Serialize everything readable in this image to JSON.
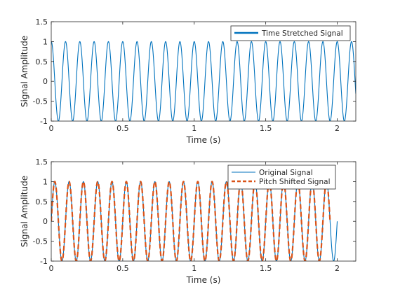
{
  "chart_data": [
    {
      "type": "line",
      "xlabel": "Time (s)",
      "ylabel": "Signal Amplitude",
      "xlim": [
        0,
        2.13
      ],
      "ylim": [
        -1,
        1.5
      ],
      "xticks": [
        0,
        0.5,
        1,
        1.5,
        2
      ],
      "xtick_labels": [
        "0",
        "0.5",
        "1",
        "1.5",
        "2"
      ],
      "yticks": [
        -1,
        -0.5,
        0,
        0.5,
        1,
        1.5
      ],
      "ytick_labels": [
        "-1",
        "-0.5",
        "0",
        "0.5",
        "1",
        "1.5"
      ],
      "grid": false,
      "legend_position": "top-right",
      "series": [
        {
          "name": "Time Stretched Signal",
          "function": "cos(2*pi*f*t)",
          "frequency_hz": 10,
          "amplitude": 1,
          "t_start": 0,
          "t_end": 2.13,
          "color": "#0072bd",
          "style": "solid"
        }
      ]
    },
    {
      "type": "line",
      "xlabel": "Time (s)",
      "ylabel": "Signal Amplitude",
      "xlim": [
        0,
        2.13
      ],
      "ylim": [
        -1,
        1.5
      ],
      "xticks": [
        0,
        0.5,
        1,
        1.5,
        2
      ],
      "xtick_labels": [
        "0",
        "0.5",
        "1",
        "1.5",
        "2"
      ],
      "yticks": [
        -1,
        -0.5,
        0,
        0.5,
        1,
        1.5
      ],
      "ytick_labels": [
        "-1",
        "-0.5",
        "0",
        "0.5",
        "1",
        "1.5"
      ],
      "grid": false,
      "legend_position": "top-right",
      "series": [
        {
          "name": "Original Signal",
          "function": "sin(2*pi*f*t)",
          "frequency_hz": 10,
          "amplitude": 1,
          "t_start": 0,
          "t_end": 2.0,
          "color": "#0072bd",
          "style": "solid"
        },
        {
          "name": "Pitch Shifted Signal",
          "function": "sin(2*pi*f*t)",
          "frequency_hz": 10,
          "amplitude": 1,
          "t_start": 0,
          "t_end": 1.95,
          "color": "#d95319",
          "style": "dashed"
        }
      ]
    }
  ]
}
